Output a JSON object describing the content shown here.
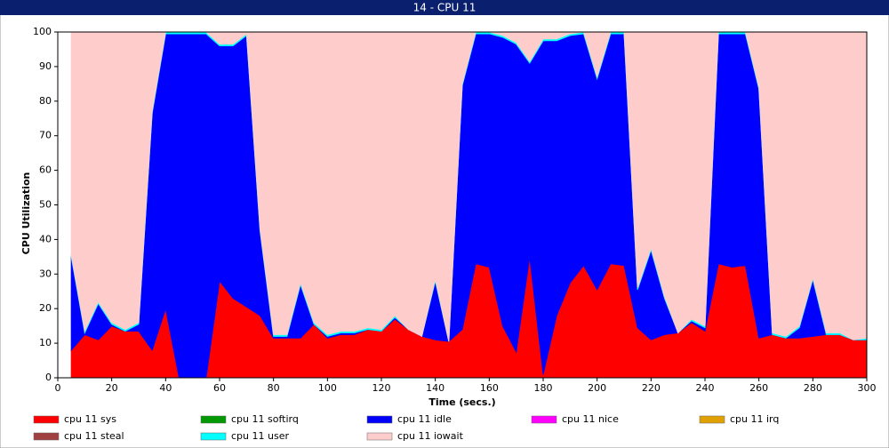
{
  "chart_data": {
    "type": "stacked_area",
    "title": "14 - CPU 11",
    "xlabel": "Time (secs.)",
    "ylabel": "CPU Utilization",
    "x": [
      5,
      10,
      15,
      20,
      25,
      30,
      35,
      40,
      45,
      50,
      55,
      60,
      65,
      70,
      75,
      80,
      85,
      90,
      95,
      100,
      105,
      110,
      115,
      120,
      125,
      130,
      135,
      140,
      145,
      150,
      155,
      160,
      165,
      170,
      175,
      180,
      185,
      190,
      195,
      200,
      205,
      210,
      215,
      220,
      225,
      230,
      235,
      240,
      245,
      250,
      255,
      260,
      265,
      270,
      275,
      280,
      285,
      290,
      295,
      300
    ],
    "xlim": [
      0,
      300
    ],
    "xticks": [
      0,
      20,
      40,
      60,
      80,
      100,
      120,
      140,
      160,
      180,
      200,
      220,
      240,
      260,
      280,
      300
    ],
    "ylim": [
      0,
      100
    ],
    "yticks": [
      0,
      10,
      20,
      30,
      40,
      50,
      60,
      70,
      80,
      90,
      100
    ],
    "grid": false,
    "legend": "bottom",
    "series": [
      {
        "name": "cpu 11 sys",
        "color": "#ff0000",
        "values": [
          8,
          12.5,
          11,
          15,
          13.5,
          13.5,
          8,
          20,
          0,
          0,
          0,
          28,
          23,
          20.5,
          18,
          11.5,
          11.5,
          11.5,
          15.5,
          11.5,
          12.5,
          12.5,
          14,
          13.5,
          17,
          14,
          12,
          11,
          10.5,
          14,
          33,
          32,
          15,
          7.5,
          35,
          1,
          18,
          27.5,
          32.5,
          25.5,
          33,
          32.5,
          14.5,
          11,
          12.5,
          13,
          16,
          13.5,
          33,
          32,
          32.5,
          11.5,
          12.5,
          11.5,
          11.5,
          12,
          12.5,
          12.5,
          11,
          11
        ]
      },
      {
        "name": "cpu 11 softirq",
        "color": "#009900",
        "values": [
          0,
          0,
          0,
          0,
          0,
          0,
          0,
          0,
          0,
          0,
          0,
          0,
          0,
          0,
          0,
          0,
          0,
          0,
          0,
          0,
          0,
          0,
          0,
          0,
          0,
          0,
          0,
          0,
          0,
          0,
          0,
          0,
          0,
          0,
          0,
          0,
          0,
          0,
          0,
          0,
          0,
          0,
          0,
          0,
          0,
          0,
          0,
          0,
          0,
          0,
          0,
          0,
          0,
          0,
          0,
          0,
          0,
          0,
          0,
          0
        ]
      },
      {
        "name": "cpu 11 idle",
        "color": "#0000ff",
        "values": [
          27,
          0.5,
          10.5,
          0.5,
          0,
          2,
          68.5,
          79.5,
          99.5,
          99.5,
          99.5,
          68,
          73,
          78.5,
          24.5,
          0.5,
          0.5,
          15.5,
          0,
          0.5,
          0.5,
          0.5,
          0,
          0,
          0.5,
          0,
          0,
          17,
          0,
          70.5,
          66.5,
          67.5,
          83.5,
          89,
          56,
          96.5,
          79.5,
          71.5,
          67,
          61,
          66.5,
          67,
          11,
          26,
          10.5,
          0,
          0.5,
          1,
          66.5,
          67.5,
          67,
          72,
          0,
          0,
          3,
          16.5,
          0,
          0,
          0,
          0
        ]
      },
      {
        "name": "cpu 11 nice",
        "color": "#ff00ff",
        "values": [
          0,
          0,
          0,
          0,
          0,
          0,
          0,
          0,
          0,
          0,
          0,
          0,
          0,
          0,
          0,
          0,
          0,
          0,
          0,
          0,
          0,
          0,
          0,
          0,
          0,
          0,
          0,
          0,
          0,
          0,
          0,
          0,
          0,
          0,
          0,
          0,
          0,
          0,
          0,
          0,
          0,
          0,
          0,
          0,
          0,
          0,
          0,
          0,
          0,
          0,
          0,
          0,
          0,
          0,
          0,
          0,
          0,
          0,
          0,
          0
        ]
      },
      {
        "name": "cpu 11 irq",
        "color": "#e0a000",
        "values": [
          0,
          0,
          0,
          0,
          0,
          0,
          0,
          0,
          0,
          0,
          0,
          0,
          0,
          0,
          0,
          0,
          0,
          0,
          0,
          0,
          0,
          0,
          0,
          0,
          0,
          0,
          0,
          0,
          0,
          0,
          0,
          0,
          0,
          0,
          0,
          0,
          0,
          0,
          0,
          0,
          0,
          0,
          0,
          0,
          0,
          0,
          0,
          0,
          0,
          0,
          0,
          0,
          0,
          0,
          0,
          0,
          0,
          0,
          0,
          0
        ]
      },
      {
        "name": "cpu 11 steal",
        "color": "#a04040",
        "values": [
          0,
          0,
          0,
          0,
          0,
          0,
          0,
          0,
          0,
          0,
          0,
          0,
          0,
          0,
          0,
          0,
          0,
          0,
          0,
          0,
          0,
          0,
          0,
          0,
          0,
          0,
          0,
          0,
          0,
          0,
          0,
          0,
          0,
          0,
          0,
          0,
          0,
          0,
          0,
          0,
          0,
          0,
          0,
          0,
          0,
          0,
          0,
          0,
          0,
          0,
          0,
          0,
          0,
          0,
          0,
          0,
          0,
          0,
          0,
          0
        ]
      },
      {
        "name": "cpu 11 user",
        "color": "#00ffff",
        "values": [
          0.5,
          0.5,
          0.5,
          0.5,
          0.5,
          0.5,
          0.5,
          0.5,
          0.5,
          0.5,
          0.5,
          0.5,
          0.5,
          0.5,
          0.5,
          0.5,
          0.5,
          0.5,
          0.5,
          0.5,
          0.5,
          0.5,
          0.5,
          0.5,
          0.5,
          0,
          0,
          0.5,
          0,
          0.5,
          0.5,
          0.5,
          0.5,
          0.5,
          0.5,
          0.5,
          0.5,
          0.5,
          0.5,
          0.5,
          0.5,
          0.5,
          0.5,
          0.5,
          0.5,
          0,
          0.5,
          0.5,
          0.5,
          0.5,
          0.5,
          0.5,
          0.5,
          0.5,
          0.5,
          0.5,
          0.5,
          0.5,
          0,
          0.5
        ]
      },
      {
        "name": "cpu 11 iowait",
        "color": "#ffcccc",
        "values": [
          64.5,
          86.5,
          78,
          84,
          86,
          84,
          23,
          0,
          0,
          0,
          0,
          3.5,
          3.5,
          0.5,
          57,
          87.5,
          87.5,
          72.5,
          84,
          87.5,
          86.5,
          86.5,
          85.5,
          86,
          82,
          86,
          88,
          71.5,
          89.5,
          15,
          0,
          0,
          1,
          3,
          8.5,
          2,
          2,
          0.5,
          0,
          13,
          0,
          0,
          74,
          62.5,
          76.5,
          87,
          83,
          85,
          0,
          0,
          0,
          16,
          87,
          88,
          85,
          71,
          87,
          87,
          89,
          88.5
        ]
      }
    ]
  }
}
